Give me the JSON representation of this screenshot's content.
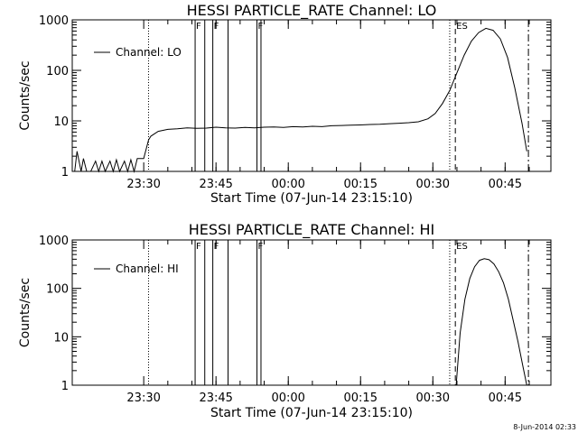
{
  "chart_data": [
    {
      "type": "line",
      "title": "HESSI PARTICLE_RATE Channel: LO",
      "xlabel": "Start Time (07-Jun-14 23:15:10)",
      "ylabel": "Counts/sec",
      "yscale": "log",
      "ylim": [
        1,
        1000
      ],
      "xlim": [
        "2014-06-07T23:15:10",
        "2014-06-08T00:54:30"
      ],
      "x_ticks": [
        "23:30",
        "23:45",
        "00:00",
        "00:15",
        "00:30",
        "00:45"
      ],
      "y_ticks": [
        "1",
        "10",
        "100",
        "1000"
      ],
      "legend_position": "top-left",
      "series": [
        {
          "name": "Channel: LO",
          "x": [
            "23:15:40",
            "23:16:10",
            "23:17:00",
            "23:17:30",
            "23:18:10",
            "23:19:00",
            "23:20:00",
            "23:20:40",
            "23:21:20",
            "23:22:00",
            "23:23:00",
            "23:23:40",
            "23:24:20",
            "23:25:00",
            "23:26:00",
            "23:26:40",
            "23:27:20",
            "23:28:00",
            "23:28:40",
            "23:29:20",
            "23:30:00",
            "23:31:00",
            "23:31:30",
            "23:33:00",
            "23:35:00",
            "23:37:00",
            "23:39:00",
            "23:41:00",
            "23:43:00",
            "23:45:00",
            "23:47:00",
            "23:49:00",
            "23:51:00",
            "23:53:00",
            "23:55:00",
            "23:57:00",
            "23:59:00",
            "00:01:00",
            "00:03:00",
            "00:05:00",
            "00:07:00",
            "00:09:00",
            "00:11:00",
            "00:13:00",
            "00:15:00",
            "00:17:00",
            "00:19:00",
            "00:21:00",
            "00:23:00",
            "00:25:00",
            "00:27:00",
            "00:29:00",
            "00:30:30",
            "00:32:00",
            "00:33:30",
            "00:35:00",
            "00:36:30",
            "00:38:00",
            "00:39:30",
            "00:41:00",
            "00:42:30",
            "00:44:00",
            "00:45:30",
            "00:47:00",
            "00:48:30",
            "00:49:30"
          ],
          "values": [
            1,
            2.5,
            1,
            1.8,
            1,
            1,
            1.6,
            1,
            1.6,
            1,
            1.6,
            1,
            1.7,
            1,
            1.6,
            1,
            1.7,
            1,
            1.8,
            1.8,
            1.8,
            4.2,
            5,
            6.2,
            6.8,
            7,
            7.3,
            7.1,
            7.2,
            7.5,
            7.3,
            7.2,
            7.4,
            7.3,
            7.5,
            7.6,
            7.4,
            7.7,
            7.6,
            7.8,
            7.7,
            8,
            8.1,
            8.2,
            8.3,
            8.5,
            8.6,
            8.8,
            9,
            9.2,
            9.6,
            11,
            14,
            22,
            40,
            90,
            200,
            380,
            560,
            680,
            620,
            420,
            180,
            45,
            9,
            2.5
          ]
        }
      ],
      "vertical_lines": [
        {
          "time": "23:31:00",
          "style": "dotted",
          "label": ""
        },
        {
          "time": "23:40:40",
          "style": "solid",
          "label": "F"
        },
        {
          "time": "23:42:40",
          "style": "solid",
          "label": ""
        },
        {
          "time": "23:44:20",
          "style": "solid",
          "label": "F"
        },
        {
          "time": "23:47:30",
          "style": "solid",
          "label": ""
        },
        {
          "time": "23:53:30",
          "style": "solid",
          "label": "F"
        },
        {
          "time": "23:54:20",
          "style": "solid",
          "label": ""
        },
        {
          "time": "00:33:30",
          "style": "dotted",
          "label": ""
        },
        {
          "time": "00:34:40",
          "style": "dashed",
          "label": "ES"
        },
        {
          "time": "00:49:50",
          "style": "dashdot",
          "label": ""
        }
      ]
    },
    {
      "type": "line",
      "title": "HESSI PARTICLE_RATE Channel: HI",
      "xlabel": "Start Time (07-Jun-14 23:15:10)",
      "ylabel": "Counts/sec",
      "yscale": "log",
      "ylim": [
        1,
        1000
      ],
      "xlim": [
        "2014-06-07T23:15:10",
        "2014-06-08T00:54:30"
      ],
      "x_ticks": [
        "23:30",
        "23:45",
        "00:00",
        "00:15",
        "00:30",
        "00:45"
      ],
      "y_ticks": [
        "1",
        "10",
        "100",
        "1000"
      ],
      "legend_position": "top-left",
      "series": [
        {
          "name": "Channel: HI",
          "x": [
            "00:34:50",
            "00:35:40",
            "00:36:40",
            "00:37:40",
            "00:38:40",
            "00:39:40",
            "00:40:40",
            "00:41:40",
            "00:42:40",
            "00:43:40",
            "00:44:40",
            "00:45:40",
            "00:46:40",
            "00:47:40",
            "00:48:40",
            "00:49:30"
          ],
          "values": [
            1,
            12,
            60,
            160,
            280,
            380,
            410,
            390,
            320,
            220,
            130,
            60,
            22,
            8,
            2.5,
            1
          ]
        }
      ],
      "vertical_lines": [
        {
          "time": "23:31:00",
          "style": "dotted",
          "label": ""
        },
        {
          "time": "23:40:40",
          "style": "solid",
          "label": "F"
        },
        {
          "time": "23:42:40",
          "style": "solid",
          "label": ""
        },
        {
          "time": "23:44:20",
          "style": "solid",
          "label": "F"
        },
        {
          "time": "23:47:30",
          "style": "solid",
          "label": ""
        },
        {
          "time": "23:53:30",
          "style": "solid",
          "label": "F"
        },
        {
          "time": "23:54:20",
          "style": "solid",
          "label": ""
        },
        {
          "time": "00:33:30",
          "style": "dotted",
          "label": ""
        },
        {
          "time": "00:34:40",
          "style": "dashed",
          "label": "ES"
        },
        {
          "time": "00:49:50",
          "style": "dashdot",
          "label": ""
        }
      ]
    }
  ],
  "footer": {
    "timestamp": "8-Jun-2014 02:33"
  },
  "colors": {
    "line": "#000000",
    "background": "#ffffff"
  }
}
